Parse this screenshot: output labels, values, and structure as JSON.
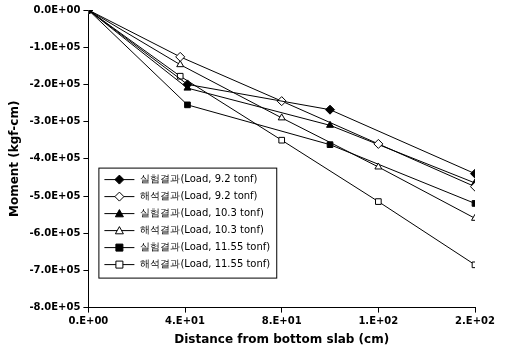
{
  "chart_data": {
    "type": "line",
    "x_label": "Distance from bottom slab (cm)",
    "y_label": "Moment (kgf-cm)",
    "xlim": [
      0,
      160
    ],
    "xticks": [
      {
        "value": 0,
        "label": "0.E+00"
      },
      {
        "value": 40,
        "label": "4.E+01"
      },
      {
        "value": 80,
        "label": "8.E+01"
      },
      {
        "value": 120,
        "label": "1.E+02"
      },
      {
        "value": 160,
        "label": "2.E+02"
      }
    ],
    "ylim": [
      -800000,
      0
    ],
    "yticks": [
      {
        "value": 0,
        "label": "0.0E+00"
      },
      {
        "value": -100000,
        "label": "-1.0E+05"
      },
      {
        "value": -200000,
        "label": "-2.0E+05"
      },
      {
        "value": -300000,
        "label": "-3.0E+05"
      },
      {
        "value": -400000,
        "label": "-4.0E+05"
      },
      {
        "value": -500000,
        "label": "-5.0E+05"
      },
      {
        "value": -600000,
        "label": "-6.0E+05"
      },
      {
        "value": -700000,
        "label": "-7.0E+05"
      },
      {
        "value": -800000,
        "label": "-8.0E+05"
      }
    ],
    "grid": false,
    "legend": "lower left",
    "series": [
      {
        "name": "실험결과(Load, 9.2 tonf)",
        "color": "#000000",
        "marker": "diamond",
        "x": [
          0,
          41,
          100,
          160
        ],
        "values": [
          0,
          -200000,
          -268000,
          -440000
        ]
      },
      {
        "name": "해석결과(Load, 9.2 tonf)",
        "color": "#000000",
        "marker": "diamond-open",
        "x": [
          0,
          38,
          80,
          120,
          160
        ],
        "values": [
          0,
          -126000,
          -245000,
          -360000,
          -475000
        ]
      },
      {
        "name": "실험결과(Load, 10.3 tonf)",
        "color": "#000000",
        "marker": "triangle",
        "x": [
          0,
          41,
          100,
          160
        ],
        "values": [
          0,
          -210000,
          -310000,
          -465000
        ]
      },
      {
        "name": "해석결과(Load, 10.3 tonf)",
        "color": "#000000",
        "marker": "triangle-open",
        "x": [
          0,
          38,
          80,
          120,
          160
        ],
        "values": [
          0,
          -147000,
          -290000,
          -422000,
          -560000
        ]
      },
      {
        "name": "실험결과(Load, 11.55 tonf)",
        "color": "#000000",
        "marker": "square",
        "x": [
          0,
          41,
          100,
          160
        ],
        "values": [
          0,
          -255000,
          -362000,
          -520000
        ]
      },
      {
        "name": "해석결과(Load, 11.55 tonf)",
        "color": "#000000",
        "marker": "square-open",
        "x": [
          0,
          38,
          80,
          120,
          160
        ],
        "values": [
          0,
          -178000,
          -350000,
          -515000,
          -685000
        ]
      }
    ]
  }
}
